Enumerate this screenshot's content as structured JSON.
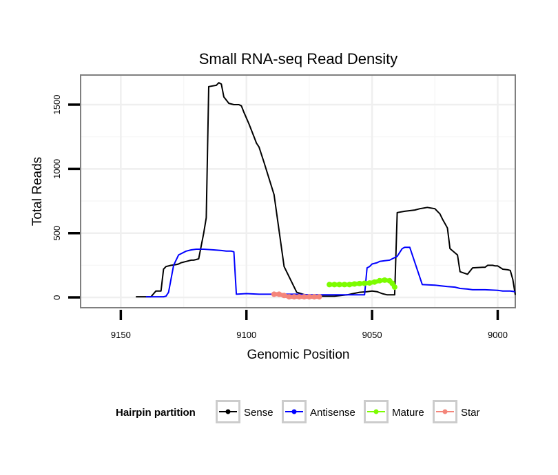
{
  "chart_data": {
    "type": "line",
    "title": "Small RNA-seq Read Density",
    "xlabel": "Genomic Position",
    "ylabel": "Total Reads",
    "x_reversed": true,
    "xlim": [
      9166,
      8993
    ],
    "ylim": [
      -80,
      1730
    ],
    "x_ticks": [
      9150,
      9100,
      9050,
      9000
    ],
    "x_tick_labels": [
      "9150",
      "9100",
      "9050",
      "9000"
    ],
    "y_ticks": [
      0,
      500,
      1000,
      1500
    ],
    "y_tick_labels": [
      "0",
      "500",
      "1000",
      "1500"
    ],
    "grid": true,
    "legend": {
      "title": "Hairpin partition",
      "position": "bottom",
      "entries": [
        "Sense",
        "Antisense",
        "Mature",
        "Star"
      ]
    },
    "series": [
      {
        "name": "Sense",
        "color": "#000000",
        "style": "line",
        "x": [
          9144,
          9138,
          9136,
          9134,
          9133,
          9132,
          9130,
          9128,
          9127,
          9126,
          9124,
          9122,
          9121,
          9120,
          9119,
          9117,
          9117,
          9116,
          9115,
          9112,
          9111,
          9110,
          9109,
          9107,
          9105,
          9103,
          9102,
          9101,
          9099,
          9097,
          9096,
          9095,
          9093,
          9089,
          9085,
          9080,
          9075,
          9070,
          9067,
          9065,
          9060,
          9055,
          9052,
          9050,
          9048,
          9046,
          9044,
          9043,
          9042,
          9041,
          9040,
          9037,
          9033,
          9031,
          9028,
          9025,
          9023,
          9022,
          9020,
          9019,
          9016,
          9015,
          9012,
          9010,
          9006,
          9005,
          9004,
          9002,
          9001,
          9000,
          8998,
          8996,
          8995,
          8994,
          8993
        ],
        "y": [
          5,
          5,
          50,
          50,
          220,
          240,
          250,
          255,
          260,
          270,
          280,
          290,
          290,
          295,
          300,
          500,
          500,
          620,
          1640,
          1650,
          1670,
          1660,
          1560,
          1510,
          1500,
          1500,
          1490,
          1440,
          1350,
          1250,
          1200,
          1170,
          1050,
          800,
          240,
          40,
          10,
          10,
          10,
          10,
          20,
          40,
          45,
          50,
          45,
          30,
          20,
          20,
          20,
          20,
          660,
          670,
          680,
          690,
          700,
          690,
          650,
          610,
          540,
          380,
          330,
          200,
          180,
          230,
          235,
          235,
          250,
          250,
          245,
          245,
          220,
          215,
          210,
          140,
          20
        ]
      },
      {
        "name": "Antisense",
        "color": "#0000ff",
        "style": "line",
        "x": [
          9140,
          9133,
          9132,
          9131,
          9129,
          9127,
          9124,
          9122,
          9120,
          9117,
          9113,
          9110,
          9108,
          9107,
          9106,
          9105,
          9104,
          9100,
          9095,
          9090,
          9085,
          9080,
          9075,
          9070,
          9065,
          9060,
          9055,
          9053,
          9052,
          9051,
          9050,
          9048,
          9047,
          9045,
          9043,
          9042,
          9040,
          9039,
          9038,
          9037,
          9035,
          9030,
          9025,
          9020,
          9017,
          9015,
          9012,
          9010,
          9005,
          9000,
          8998,
          8995,
          8993
        ],
        "y": [
          5,
          5,
          10,
          40,
          250,
          330,
          360,
          370,
          375,
          375,
          370,
          365,
          360,
          360,
          360,
          355,
          25,
          30,
          25,
          25,
          25,
          25,
          20,
          20,
          20,
          20,
          20,
          20,
          230,
          240,
          260,
          270,
          280,
          285,
          290,
          300,
          320,
          350,
          380,
          390,
          390,
          100,
          95,
          85,
          80,
          70,
          65,
          60,
          60,
          55,
          50,
          50,
          45
        ]
      },
      {
        "name": "Mature",
        "color": "#7cfc00",
        "style": "thick",
        "x": [
          9067,
          9065,
          9063,
          9061,
          9059,
          9057,
          9055,
          9053,
          9051,
          9049,
          9047,
          9045,
          9043,
          9042,
          9041
        ],
        "y": [
          100,
          100,
          100,
          100,
          100,
          105,
          108,
          110,
          112,
          120,
          130,
          135,
          130,
          110,
          80
        ]
      },
      {
        "name": "Star",
        "color": "#f4857a",
        "style": "thick",
        "x": [
          9089,
          9087,
          9085,
          9083,
          9081,
          9079,
          9077,
          9075,
          9073,
          9071
        ],
        "y": [
          25,
          25,
          15,
          5,
          5,
          5,
          5,
          5,
          5,
          5
        ]
      }
    ]
  }
}
